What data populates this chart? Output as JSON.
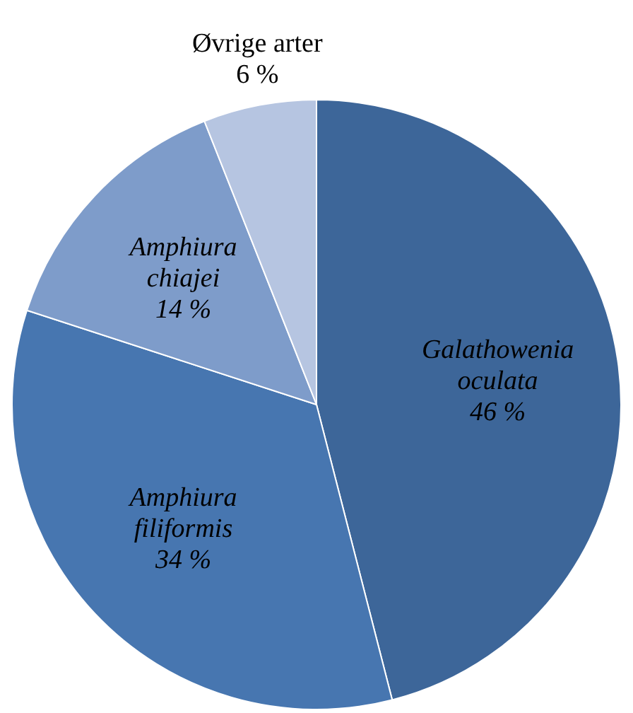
{
  "chart_data": {
    "type": "pie",
    "categories": [
      "Galathowenia oculata",
      "Amphiura filiformis",
      "Amphiura chiajei",
      "Øvrige arter"
    ],
    "values": [
      46,
      34,
      14,
      6
    ],
    "value_labels": [
      "46 %",
      "34 %",
      "14 %",
      "6 %"
    ],
    "colors": [
      "#3d6699",
      "#4776b0",
      "#7e9cca",
      "#b6c5e1"
    ]
  }
}
